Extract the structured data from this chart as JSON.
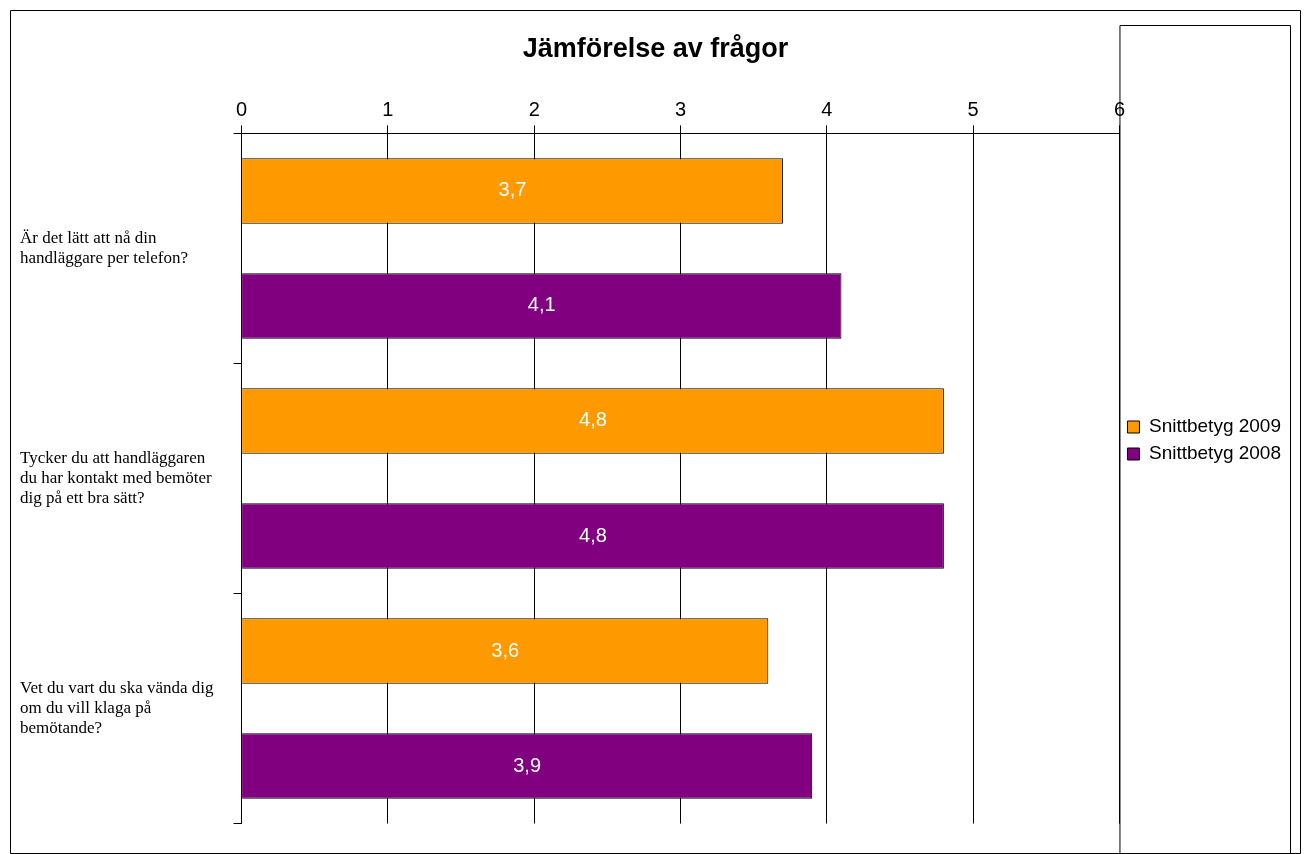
{
  "chart_data": {
    "type": "bar",
    "orientation": "horizontal",
    "title": "Jämförelse av frågor",
    "categories": [
      "Är det lätt att nå din handläggare per telefon?",
      "Tycker du att handläggaren du har kontakt med bemöter dig på ett bra sätt?",
      "Vet du vart du ska vända dig om du vill klaga på bemötande?"
    ],
    "series": [
      {
        "name": "Snittbetyg 2009",
        "color": "#ff9900",
        "values": [
          3.7,
          4.8,
          3.6
        ],
        "value_labels": [
          "3,7",
          "4,8",
          "3,6"
        ]
      },
      {
        "name": "Snittbetyg 2008",
        "color": "#800080",
        "values": [
          4.1,
          4.8,
          3.9
        ],
        "value_labels": [
          "4,1",
          "4,8",
          "3,9"
        ]
      }
    ],
    "xlim": [
      0,
      6
    ],
    "xticks": [
      0,
      1,
      2,
      3,
      4,
      5,
      6
    ],
    "grid": "x",
    "legend": "right"
  }
}
